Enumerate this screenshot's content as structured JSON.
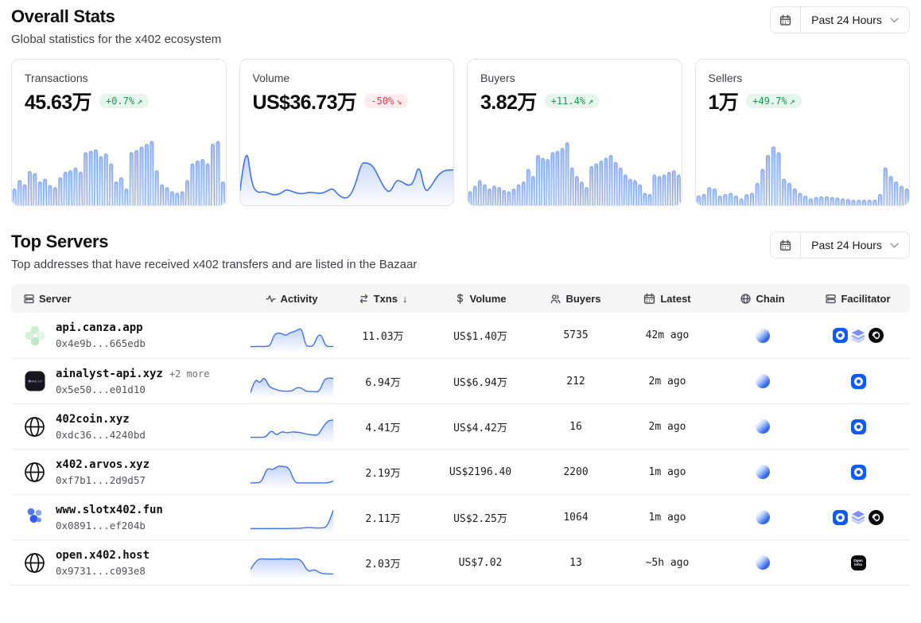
{
  "header": {
    "title": "Overall Stats",
    "subtitle": "Global statistics for the x402 ecosystem",
    "timeframe": "Past 24 Hours"
  },
  "top_servers": {
    "title": "Top Servers",
    "subtitle": "Top addresses that have received x402 transfers and are listed in the Bazaar",
    "timeframe": "Past 24 Hours"
  },
  "colors": {
    "accent_blue": "#3b6ef5",
    "badge_up_bg": "#e6f6ed",
    "badge_up_text": "#169a51",
    "badge_down_bg": "#fdeceb",
    "badge_down_text": "#e03a4e"
  },
  "stat_cards": [
    {
      "label": "Transactions",
      "value": "45.63万",
      "change": "+0.7%",
      "direction": "up",
      "chart_type": "bar",
      "chart": [
        20,
        32,
        26,
        45,
        42,
        30,
        34,
        25,
        22,
        36,
        44,
        46,
        50,
        44,
        72,
        74,
        76,
        66,
        70,
        56,
        30,
        36,
        20,
        72,
        75,
        80,
        84,
        88,
        46,
        26,
        22,
        16,
        14,
        16,
        32,
        56,
        60,
        62,
        56,
        84,
        88,
        30
      ]
    },
    {
      "label": "Volume",
      "value": "US$36.73万",
      "change": "-50%",
      "direction": "down",
      "chart_type": "area",
      "chart": [
        18,
        88,
        25,
        14,
        16,
        13,
        11,
        13,
        19,
        16,
        13,
        13,
        15,
        14,
        13,
        16,
        21,
        11,
        6,
        9,
        26,
        56,
        56,
        52,
        36,
        20,
        14,
        32,
        30,
        24,
        27,
        56,
        14,
        22,
        36,
        44,
        46,
        46
      ]
    },
    {
      "label": "Buyers",
      "value": "3.82万",
      "change": "+11.4%",
      "direction": "up",
      "chart_type": "bar",
      "chart": [
        16,
        24,
        32,
        26,
        20,
        24,
        22,
        18,
        16,
        20,
        26,
        30,
        48,
        38,
        68,
        64,
        62,
        72,
        74,
        78,
        86,
        50,
        38,
        30,
        22,
        52,
        56,
        60,
        64,
        68,
        58,
        50,
        40,
        34,
        32,
        26,
        14,
        12,
        40,
        38,
        40,
        44,
        46,
        40
      ]
    },
    {
      "label": "Sellers",
      "value": "1万",
      "change": "+49.7%",
      "direction": "up",
      "chart_type": "bar",
      "chart": [
        10,
        12,
        22,
        20,
        10,
        12,
        14,
        10,
        6,
        12,
        14,
        28,
        48,
        68,
        80,
        72,
        34,
        28,
        20,
        14,
        10,
        6,
        8,
        9,
        9,
        8,
        7,
        6,
        5,
        4,
        4,
        4,
        4,
        4,
        12,
        50,
        38,
        30,
        24,
        20
      ]
    }
  ],
  "table": {
    "columns": [
      {
        "id": "server",
        "label": "Server",
        "icon": "server-icon"
      },
      {
        "id": "activity",
        "label": "Activity",
        "icon": "activity-icon"
      },
      {
        "id": "txns",
        "label": "Txns",
        "icon": "txns-icon",
        "sorted": "desc"
      },
      {
        "id": "volume",
        "label": "Volume",
        "icon": "dollar-icon"
      },
      {
        "id": "buyers",
        "label": "Buyers",
        "icon": "users-icon"
      },
      {
        "id": "latest",
        "label": "Latest",
        "icon": "calendar-icon"
      },
      {
        "id": "chain",
        "label": "Chain",
        "icon": "globe-icon"
      },
      {
        "id": "facilitator",
        "label": "Facilitator",
        "icon": "facilitator-icon"
      }
    ],
    "rows": [
      {
        "server": "api.canza.app",
        "extra": "",
        "address": "0x4e9b...665edb",
        "icon": "canza-logo",
        "activity": [
          10,
          10,
          11,
          10,
          11,
          12,
          55,
          60,
          58,
          50,
          62,
          65,
          72,
          78,
          12,
          11,
          12,
          50,
          55,
          12,
          10,
          11
        ],
        "txns": "11.03万",
        "volume": "US$1.40万",
        "buyers": "5735",
        "latest": "42m ago",
        "chain": "base",
        "facilitators": [
          "coinbase",
          "layers",
          "dark-swirl"
        ]
      },
      {
        "server": "ainalyst-api.xyz",
        "extra": "+2 more",
        "address": "0x5e50...e01d10",
        "icon": "ainalyst-logo",
        "activity": [
          8,
          62,
          40,
          68,
          30,
          22,
          16,
          13,
          13,
          13,
          26,
          26,
          13,
          12,
          11,
          11,
          56,
          62,
          60
        ],
        "txns": "6.94万",
        "volume": "US$6.94万",
        "buyers": "212",
        "latest": "2m ago",
        "chain": "base",
        "facilitators": [
          "coinbase"
        ]
      },
      {
        "server": "402coin.xyz",
        "extra": "",
        "address": "0xdc36...4240bd",
        "icon": "globe-logo",
        "activity": [
          10,
          10,
          10,
          11,
          38,
          16,
          32,
          26,
          30,
          29,
          26,
          21,
          19,
          16,
          48,
          72,
          74
        ],
        "txns": "4.41万",
        "volume": "US$4.42万",
        "buyers": "16",
        "latest": "2m ago",
        "chain": "base",
        "facilitators": [
          "coinbase"
        ]
      },
      {
        "server": "x402.arvos.xyz",
        "extra": "",
        "address": "0xf7b1...2d9d57",
        "icon": "globe-logo",
        "activity": [
          9,
          9,
          11,
          66,
          56,
          72,
          70,
          66,
          9,
          9,
          9,
          9,
          9,
          9,
          9,
          16
        ],
        "txns": "2.19万",
        "volume": "US$2196.40",
        "buyers": "2200",
        "latest": "1m ago",
        "chain": "base",
        "facilitators": [
          "coinbase"
        ]
      },
      {
        "server": "www.slotx402.fun",
        "extra": "",
        "address": "0x0891...ef204b",
        "icon": "slotx-logo",
        "activity": [
          8,
          8,
          8,
          8,
          8,
          8,
          8,
          9,
          9,
          13,
          10,
          10,
          12,
          75
        ],
        "txns": "2.11万",
        "volume": "US$2.25万",
        "buyers": "1064",
        "latest": "1m ago",
        "chain": "base",
        "facilitators": [
          "coinbase",
          "layers",
          "dark-swirl"
        ]
      },
      {
        "server": "open.x402.host",
        "extra": "",
        "address": "0x9731...c093e8",
        "icon": "globe-logo",
        "activity": [
          25,
          62,
          64,
          62,
          63,
          64,
          62,
          64,
          60,
          14,
          26,
          10,
          8,
          8
        ],
        "txns": "2.03万",
        "volume": "US$7.02",
        "buyers": "13",
        "latest": "~5h ago",
        "chain": "base",
        "facilitators": [
          "openinfra"
        ]
      }
    ]
  }
}
